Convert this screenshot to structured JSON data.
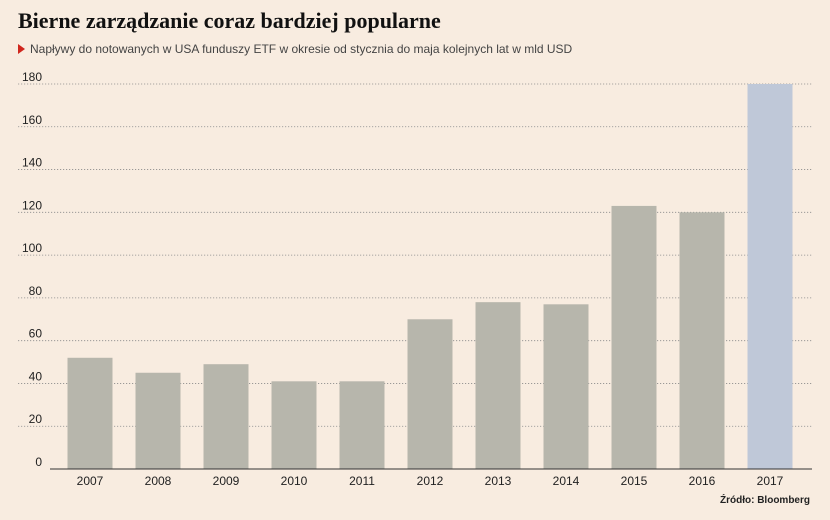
{
  "chart_data": {
    "type": "bar",
    "title": "Bierne zarządzanie coraz bardziej popularne",
    "subtitle": "Napływy do notowanych w USA funduszy ETF w okresie od stycznia do maja kolejnych lat w mld USD",
    "xlabel": "",
    "ylabel": "",
    "categories": [
      "2007",
      "2008",
      "2009",
      "2010",
      "2011",
      "2012",
      "2013",
      "2014",
      "2015",
      "2016",
      "2017"
    ],
    "values": [
      52,
      45,
      49,
      41,
      41,
      70,
      78,
      77,
      123,
      120,
      180
    ],
    "ylim": [
      0,
      180
    ],
    "yticks": [
      0,
      20,
      40,
      60,
      80,
      100,
      120,
      140,
      160,
      180
    ],
    "grid": true,
    "legend": "none",
    "colors": {
      "bar": "#b7b6ac",
      "highlight": "#bfc8d8",
      "highlight_category": "2017",
      "grid": "#8c8c8c",
      "axis": "#333333",
      "accent": "#d0261d"
    },
    "source": "Źródło: Bloomberg"
  }
}
